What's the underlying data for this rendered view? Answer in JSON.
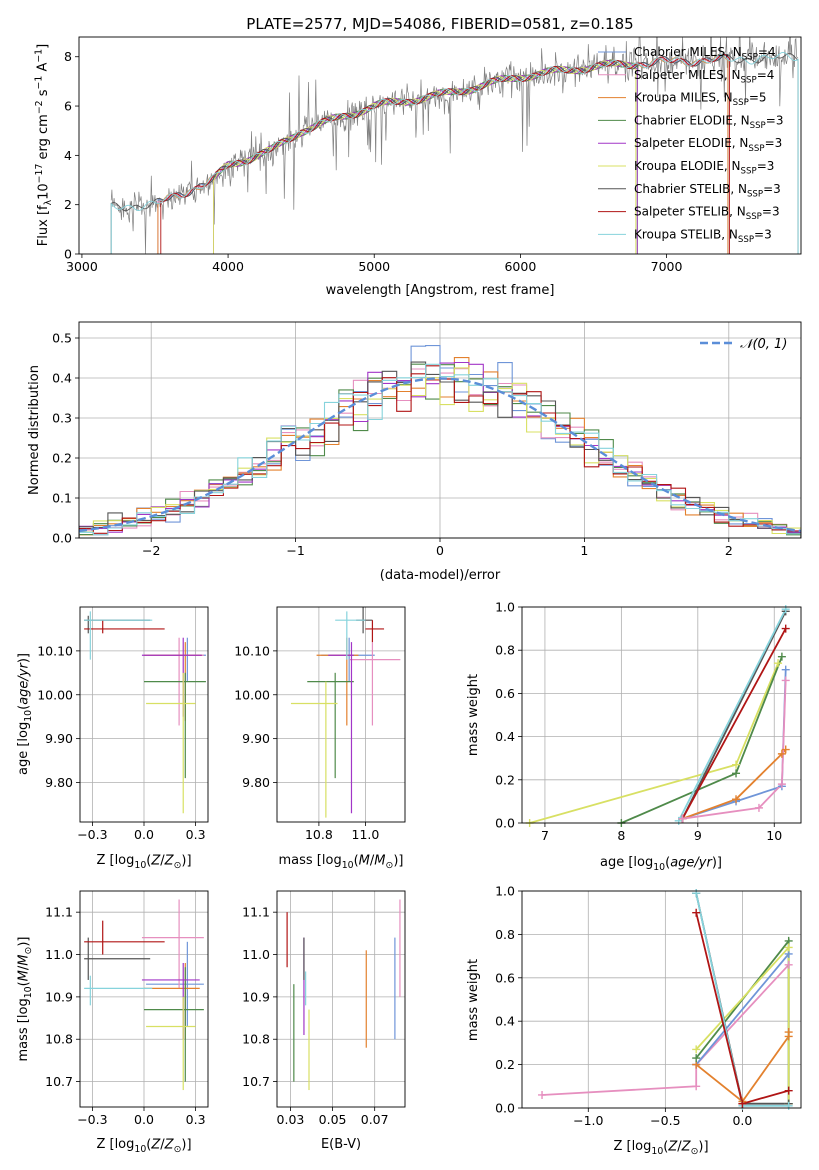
{
  "figure": {
    "title": "PLATE=2577, MJD=54086, FIBERID=0581, z=0.185"
  },
  "colors": {
    "chabrier_miles": "#6f95d8",
    "salpeter_miles": "#e68fbf",
    "kroupa_miles": "#e3812e",
    "chabrier_elodie": "#4f8a4a",
    "salpeter_elodie": "#a236c7",
    "kroupa_elodie": "#d8e063",
    "chabrier_stelib": "#555555",
    "salpeter_stelib": "#b01515",
    "kroupa_stelib": "#86d3dc",
    "data": "#808080",
    "normal": "#5b8ed8",
    "grid": "#b0b0b0"
  },
  "chart_data": [
    {
      "id": "spectrum",
      "type": "line",
      "xlabel": "wavelength [Angstrom, rest frame]",
      "ylabel_plain": "Flux [f",
      "xlim": [
        2980,
        7920
      ],
      "ylim": [
        0,
        8.8
      ],
      "xticks": [
        3000,
        4000,
        5000,
        6000,
        7000
      ],
      "yticks": [
        0,
        2,
        4,
        6,
        8
      ],
      "grid": false,
      "legend_position": "top-right",
      "legend": [
        "Chabrier MILES, N_SSP=4",
        "Salpeter MILES, N_SSP=4",
        "Kroupa MILES, N_SSP=5",
        "Chabrier ELODIE, N_SSP=3",
        "Salpeter ELODIE, N_SSP=3",
        "Kroupa ELODIE, N_SSP=3",
        "Chabrier STELIB, N_SSP=3",
        "Salpeter STELIB, N_SSP=3",
        "Kroupa STELIB, N_SSP=3"
      ],
      "continuum": {
        "x": [
          3200,
          3500,
          3700,
          3900,
          4000,
          4300,
          4500,
          5000,
          5500,
          6000,
          6500,
          7000,
          7500,
          7900
        ],
        "y": [
          1.9,
          2.0,
          2.5,
          3.0,
          3.6,
          4.2,
          5.0,
          6.0,
          6.5,
          7.2,
          7.6,
          7.8,
          7.9,
          8.0
        ]
      }
    },
    {
      "id": "residuals",
      "type": "histogram",
      "xlabel": "(data-model)/error",
      "ylabel": "Normed distribution",
      "xlim": [
        -2.5,
        2.5
      ],
      "ylim": [
        0,
        0.54
      ],
      "xticks": [
        -2,
        -1,
        0,
        1,
        2
      ],
      "yticks": [
        0.0,
        0.1,
        0.2,
        0.3,
        0.4,
        0.5
      ],
      "grid": true,
      "legend_position": "top-right",
      "legend": [
        "𝒩(0, 1)"
      ],
      "bin_width": 0.1,
      "reference_curve": "normal pdf, mean 0, sigma 1, dashed"
    },
    {
      "id": "age_vs_Z",
      "type": "scatter",
      "xlabel": "Z [log10(Z/Z☉)]",
      "ylabel": "age [log10(age/yr)]",
      "xlim": [
        -0.31,
        0.31
      ],
      "ylim": [
        9.71,
        10.2
      ],
      "xticks": [
        -0.25,
        0.0,
        0.25
      ],
      "yticks": [
        9.8,
        9.9,
        10.0,
        10.1
      ],
      "grid": true,
      "points": [
        {
          "model": "chabrier_miles",
          "x": 0.21,
          "y": 10.09,
          "xerr": [
            0.07,
            0.09
          ],
          "yerr": [
            0.06,
            0.04
          ]
        },
        {
          "model": "salpeter_miles",
          "x": 0.17,
          "y": 10.09,
          "xerr": [
            0.17,
            0.12
          ],
          "yerr": [
            0.16,
            0.04
          ]
        },
        {
          "model": "kroupa_miles",
          "x": 0.2,
          "y": 10.09,
          "xerr": [
            0.2,
            0.08
          ],
          "yerr": [
            0.15,
            0.03
          ]
        },
        {
          "model": "chabrier_elodie",
          "x": 0.2,
          "y": 10.03,
          "xerr": [
            0.2,
            0.1
          ],
          "yerr": [
            0.22,
            0.02
          ]
        },
        {
          "model": "salpeter_elodie",
          "x": 0.19,
          "y": 10.09,
          "xerr": [
            0.2,
            0.09
          ],
          "yerr": [
            0.14,
            0.04
          ]
        },
        {
          "model": "kroupa_elodie",
          "x": 0.19,
          "y": 9.98,
          "xerr": [
            0.18,
            0.06
          ],
          "yerr": [
            0.25,
            0.07
          ]
        },
        {
          "model": "chabrier_stelib",
          "x": -0.27,
          "y": 10.17,
          "xerr": [
            0.02,
            0.3
          ],
          "yerr": [
            0.03,
            0.01
          ]
        },
        {
          "model": "salpeter_stelib",
          "x": -0.2,
          "y": 10.15,
          "xerr": [
            0.09,
            0.3
          ],
          "yerr": [
            0.01,
            0.02
          ]
        },
        {
          "model": "kroupa_stelib",
          "x": -0.26,
          "y": 10.17,
          "xerr": [
            0.03,
            0.3
          ],
          "yerr": [
            0.09,
            0.02
          ]
        }
      ]
    },
    {
      "id": "age_vs_mass",
      "type": "scatter",
      "xlabel": "mass [log10(M/M☉)]",
      "ylabel": "",
      "xlim": [
        10.62,
        11.17
      ],
      "ylim": [
        9.71,
        10.2
      ],
      "xticks": [
        10.8,
        11.0
      ],
      "yticks": [
        9.8,
        9.9,
        10.0,
        10.1
      ],
      "grid": true,
      "points": [
        {
          "model": "chabrier_miles",
          "x": 10.93,
          "y": 10.09,
          "xerr": [
            0.12,
            0.11
          ],
          "yerr": [
            0.06,
            0.04
          ]
        },
        {
          "model": "salpeter_miles",
          "x": 11.03,
          "y": 10.08,
          "xerr": [
            0.1,
            0.12
          ],
          "yerr": [
            0.15,
            0.04
          ]
        },
        {
          "model": "kroupa_miles",
          "x": 10.92,
          "y": 10.09,
          "xerr": [
            0.13,
            0.05
          ],
          "yerr": [
            0.16,
            0.04
          ]
        },
        {
          "model": "chabrier_elodie",
          "x": 10.87,
          "y": 10.03,
          "xerr": [
            0.12,
            0.08
          ],
          "yerr": [
            0.22,
            0.02
          ]
        },
        {
          "model": "salpeter_elodie",
          "x": 10.94,
          "y": 10.09,
          "xerr": [
            0.1,
            0.01
          ],
          "yerr": [
            0.36,
            0.03
          ]
        },
        {
          "model": "kroupa_elodie",
          "x": 10.83,
          "y": 9.98,
          "xerr": [
            0.15,
            0.05
          ],
          "yerr": [
            0.26,
            0.05
          ]
        },
        {
          "model": "chabrier_stelib",
          "x": 10.99,
          "y": 10.17,
          "xerr": [
            0.03,
            0.04
          ],
          "yerr": [
            0.03,
            0.03
          ]
        },
        {
          "model": "salpeter_stelib",
          "x": 11.03,
          "y": 10.15,
          "xerr": [
            0.03,
            0.05
          ],
          "yerr": [
            0.03,
            0.02
          ]
        },
        {
          "model": "kroupa_stelib",
          "x": 10.92,
          "y": 10.17,
          "xerr": [
            0.05,
            0.08
          ],
          "yerr": [
            0.09,
            0.02
          ]
        }
      ]
    },
    {
      "id": "weight_vs_age",
      "type": "line",
      "xlabel": "age [log10(age/yr)]",
      "ylabel": "mass weight",
      "xlim": [
        6.7,
        10.35
      ],
      "ylim": [
        0,
        1
      ],
      "xticks": [
        7,
        8,
        9,
        10
      ],
      "yticks": [
        0.0,
        0.2,
        0.4,
        0.6,
        0.8,
        1.0
      ],
      "grid": true,
      "series": [
        {
          "model": "kroupa_elodie",
          "x": [
            6.8,
            9.5,
            10.05
          ],
          "y": [
            0.0,
            0.27,
            0.74
          ]
        },
        {
          "model": "chabrier_elodie",
          "x": [
            8.0,
            9.5,
            10.1
          ],
          "y": [
            0.0,
            0.23,
            0.77
          ]
        },
        {
          "model": "chabrier_stelib",
          "x": [
            8.8,
            10.15
          ],
          "y": [
            0.02,
            0.98
          ]
        },
        {
          "model": "kroupa_stelib",
          "x": [
            8.75,
            10.15
          ],
          "y": [
            0.01,
            0.99
          ]
        },
        {
          "model": "salpeter_stelib",
          "x": [
            8.8,
            10.15
          ],
          "y": [
            0.02,
            0.9
          ]
        },
        {
          "model": "chabrier_miles",
          "x": [
            8.8,
            9.5,
            10.1,
            10.15
          ],
          "y": [
            0.02,
            0.1,
            0.17,
            0.71
          ]
        },
        {
          "model": "kroupa_miles",
          "x": [
            8.8,
            9.5,
            10.1,
            10.15
          ],
          "y": [
            0.02,
            0.11,
            0.32,
            0.34
          ]
        },
        {
          "model": "salpeter_miles",
          "x": [
            8.8,
            9.8,
            10.1,
            10.15
          ],
          "y": [
            0.02,
            0.07,
            0.18,
            0.66
          ]
        }
      ]
    },
    {
      "id": "mass_vs_Z",
      "type": "scatter",
      "xlabel": "Z [log10(Z/Z☉)]",
      "ylabel": "mass [log10(M/M☉)]",
      "xlim": [
        -0.31,
        0.31
      ],
      "ylim": [
        10.64,
        11.15
      ],
      "xticks": [
        -0.25,
        0.0,
        0.25
      ],
      "yticks": [
        10.7,
        10.8,
        10.9,
        11.0,
        11.1
      ],
      "grid": true,
      "points": [
        {
          "model": "chabrier_miles",
          "x": 0.21,
          "y": 10.93,
          "xerr": [
            0.2,
            0.08
          ],
          "yerr": [
            0.1,
            0.1
          ]
        },
        {
          "model": "salpeter_miles",
          "x": 0.17,
          "y": 11.04,
          "xerr": [
            0.18,
            0.12
          ],
          "yerr": [
            0.12,
            0.09
          ]
        },
        {
          "model": "kroupa_miles",
          "x": 0.2,
          "y": 10.92,
          "xerr": [
            0.2,
            0.07
          ],
          "yerr": [
            0.12,
            0.06
          ]
        },
        {
          "model": "chabrier_elodie",
          "x": 0.2,
          "y": 10.87,
          "xerr": [
            0.2,
            0.09
          ],
          "yerr": [
            0.17,
            0.1
          ]
        },
        {
          "model": "salpeter_elodie",
          "x": 0.19,
          "y": 10.94,
          "xerr": [
            0.2,
            0.08
          ],
          "yerr": [
            0.14,
            0.04
          ]
        },
        {
          "model": "kroupa_elodie",
          "x": 0.19,
          "y": 10.83,
          "xerr": [
            0.18,
            0.06
          ],
          "yerr": [
            0.15,
            0.07
          ]
        },
        {
          "model": "chabrier_stelib",
          "x": -0.27,
          "y": 10.99,
          "xerr": [
            0.02,
            0.3
          ],
          "yerr": [
            0.05,
            0.05
          ]
        },
        {
          "model": "salpeter_stelib",
          "x": -0.2,
          "y": 11.03,
          "xerr": [
            0.09,
            0.3
          ],
          "yerr": [
            0.03,
            0.05
          ]
        },
        {
          "model": "kroupa_stelib",
          "x": -0.26,
          "y": 10.92,
          "xerr": [
            0.03,
            0.3
          ],
          "yerr": [
            0.04,
            0.03
          ]
        }
      ]
    },
    {
      "id": "mass_vs_ebv",
      "type": "scatter",
      "xlabel": "E(B-V)",
      "ylabel": "",
      "xlim": [
        0.017,
        0.093
      ],
      "ylim": [
        10.64,
        11.15
      ],
      "xticks": [
        0.025,
        0.05,
        0.075
      ],
      "yticks": [
        10.7,
        10.8,
        10.9,
        11.0,
        11.1
      ],
      "grid": true,
      "points": [
        {
          "model": "chabrier_miles",
          "x": 0.087,
          "y": 10.92,
          "yerr": [
            0.12,
            0.12
          ]
        },
        {
          "model": "salpeter_miles",
          "x": 0.09,
          "y": 11.02,
          "yerr": [
            0.12,
            0.11
          ]
        },
        {
          "model": "kroupa_miles",
          "x": 0.07,
          "y": 10.9,
          "yerr": [
            0.12,
            0.11
          ]
        },
        {
          "model": "chabrier_elodie",
          "x": 0.027,
          "y": 10.81,
          "yerr": [
            0.11,
            0.12
          ]
        },
        {
          "model": "salpeter_elodie",
          "x": 0.033,
          "y": 10.91,
          "yerr": [
            0.1,
            0.13
          ]
        },
        {
          "model": "kroupa_elodie",
          "x": 0.036,
          "y": 10.77,
          "yerr": [
            0.09,
            0.1
          ]
        },
        {
          "model": "chabrier_stelib",
          "x": 0.033,
          "y": 10.98,
          "yerr": [
            0.04,
            0.06
          ]
        },
        {
          "model": "salpeter_stelib",
          "x": 0.023,
          "y": 11.03,
          "yerr": [
            0.06,
            0.07
          ]
        },
        {
          "model": "kroupa_stelib",
          "x": 0.034,
          "y": 10.92,
          "yerr": [
            0.04,
            0.04
          ]
        }
      ]
    },
    {
      "id": "weight_vs_Z",
      "type": "line",
      "xlabel": "Z [log10(Z/Z☉)]",
      "ylabel": "mass weight",
      "xlim": [
        -1.43,
        0.38
      ],
      "ylim": [
        0,
        1
      ],
      "xticks": [
        -1.0,
        -0.5,
        0.0
      ],
      "yticks": [
        0.0,
        0.2,
        0.4,
        0.6,
        0.8,
        1.0
      ],
      "grid": true,
      "series": [
        {
          "model": "salpeter_miles",
          "x": [
            -1.3,
            -0.3,
            -0.3,
            0.3
          ],
          "y": [
            0.06,
            0.1,
            0.2,
            0.66
          ]
        },
        {
          "model": "chabrier_miles",
          "x": [
            -0.3,
            0.3,
            0.3
          ],
          "y": [
            0.2,
            0.71,
            0.02
          ]
        },
        {
          "model": "kroupa_miles",
          "x": [
            -0.3,
            0.0,
            0.3,
            0.3
          ],
          "y": [
            0.2,
            0.03,
            0.33,
            0.35
          ]
        },
        {
          "model": "chabrier_elodie",
          "x": [
            -0.3,
            0.3,
            0.3
          ],
          "y": [
            0.23,
            0.77,
            0.02
          ]
        },
        {
          "model": "kroupa_elodie",
          "x": [
            -0.3,
            0.3,
            0.3
          ],
          "y": [
            0.27,
            0.74,
            0.02
          ]
        },
        {
          "model": "chabrier_stelib",
          "x": [
            -0.3,
            0.0,
            0.3
          ],
          "y": [
            0.99,
            0.02,
            0.02
          ]
        },
        {
          "model": "kroupa_stelib",
          "x": [
            -0.3,
            0.0,
            0.3
          ],
          "y": [
            0.99,
            0.01,
            0.01
          ]
        },
        {
          "model": "salpeter_stelib",
          "x": [
            -0.3,
            0.0,
            0.3
          ],
          "y": [
            0.9,
            0.02,
            0.08
          ]
        }
      ]
    }
  ]
}
